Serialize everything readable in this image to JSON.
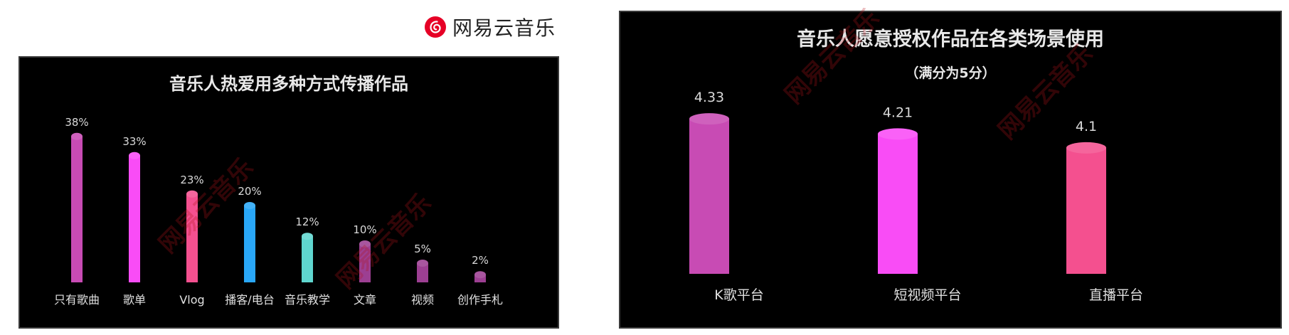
{
  "brand": {
    "logo_icon": "netease-cloud-music-logo-icon",
    "name": "网易云音乐",
    "color": "#e60026"
  },
  "watermark_text": "网易云音乐",
  "chart_data": [
    {
      "type": "bar",
      "title": "音乐人热爱用多种方式传播作品",
      "categories": [
        "只有歌曲",
        "歌单",
        "Vlog",
        "播客/电台",
        "音乐教学",
        "文章",
        "视频",
        "创作手札"
      ],
      "values": [
        38,
        33,
        23,
        20,
        12,
        10,
        5,
        2
      ],
      "value_labels": [
        "38%",
        "33%",
        "23%",
        "20%",
        "12%",
        "10%",
        "5%",
        "2%"
      ],
      "colors": [
        "#c84bb4",
        "#f94cf6",
        "#f4508f",
        "#29a7f7",
        "#5fd6cf",
        "#9c3f92",
        "#9c3f92",
        "#9c3f92"
      ],
      "ylim": [
        0,
        40
      ],
      "grid": false
    },
    {
      "type": "bar",
      "title": "音乐人愿意授权作品在各类场景使用",
      "subtitle": "（满分为5分）",
      "categories": [
        "K歌平台",
        "短视频平台",
        "直播平台"
      ],
      "values": [
        4.33,
        4.21,
        4.1
      ],
      "value_labels": [
        "4.33",
        "4.21",
        "4.1"
      ],
      "colors": [
        "#c84bb4",
        "#f94cf6",
        "#f4508f"
      ],
      "ylim": [
        3.1,
        4.5
      ],
      "grid": false
    }
  ]
}
